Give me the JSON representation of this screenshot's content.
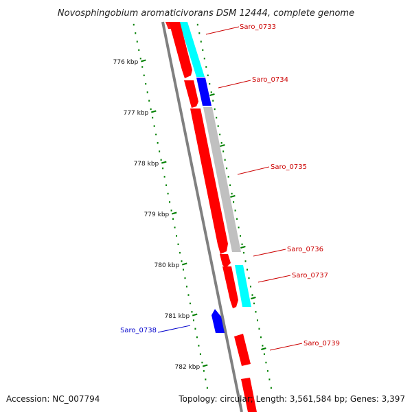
{
  "header": {
    "title": "Novosphingobium aromaticivorans DSM 12444, complete genome"
  },
  "footer": {
    "accession": "Accession: NC_007794",
    "summary": "Topology: circular; Length: 3,561,584 bp; Genes: 3,397"
  },
  "scale": {
    "unit": "kbp",
    "major_ticks": [
      {
        "kbp": 776,
        "label": "776 kbp"
      },
      {
        "kbp": 777,
        "label": "777 kbp"
      },
      {
        "kbp": 778,
        "label": "778 kbp"
      },
      {
        "kbp": 779,
        "label": "779 kbp"
      },
      {
        "kbp": 780,
        "label": "780 kbp"
      },
      {
        "kbp": 781,
        "label": "781 kbp"
      },
      {
        "kbp": 782,
        "label": "782 kbp"
      }
    ]
  },
  "colors": {
    "cds": "#ff0000",
    "highlight_blue": "#0000ff",
    "highlight_cyan": "#00ffff",
    "highlight_gray": "#c0c0c0",
    "backbone": "#808080",
    "ticks": "#008000",
    "label_red": "#cc0000",
    "label_blue": "#0000cc"
  },
  "genes": [
    {
      "id": "Saro_0733",
      "label": "Saro_0733",
      "label_color": "red"
    },
    {
      "id": "Saro_0734",
      "label": "Saro_0734",
      "label_color": "red"
    },
    {
      "id": "Saro_0735",
      "label": "Saro_0735",
      "label_color": "red"
    },
    {
      "id": "Saro_0736",
      "label": "Saro_0736",
      "label_color": "red"
    },
    {
      "id": "Saro_0737",
      "label": "Saro_0737",
      "label_color": "red"
    },
    {
      "id": "Saro_0738",
      "label": "Saro_0738",
      "label_color": "blue"
    },
    {
      "id": "Saro_0739",
      "label": "Saro_0739",
      "label_color": "red"
    }
  ]
}
